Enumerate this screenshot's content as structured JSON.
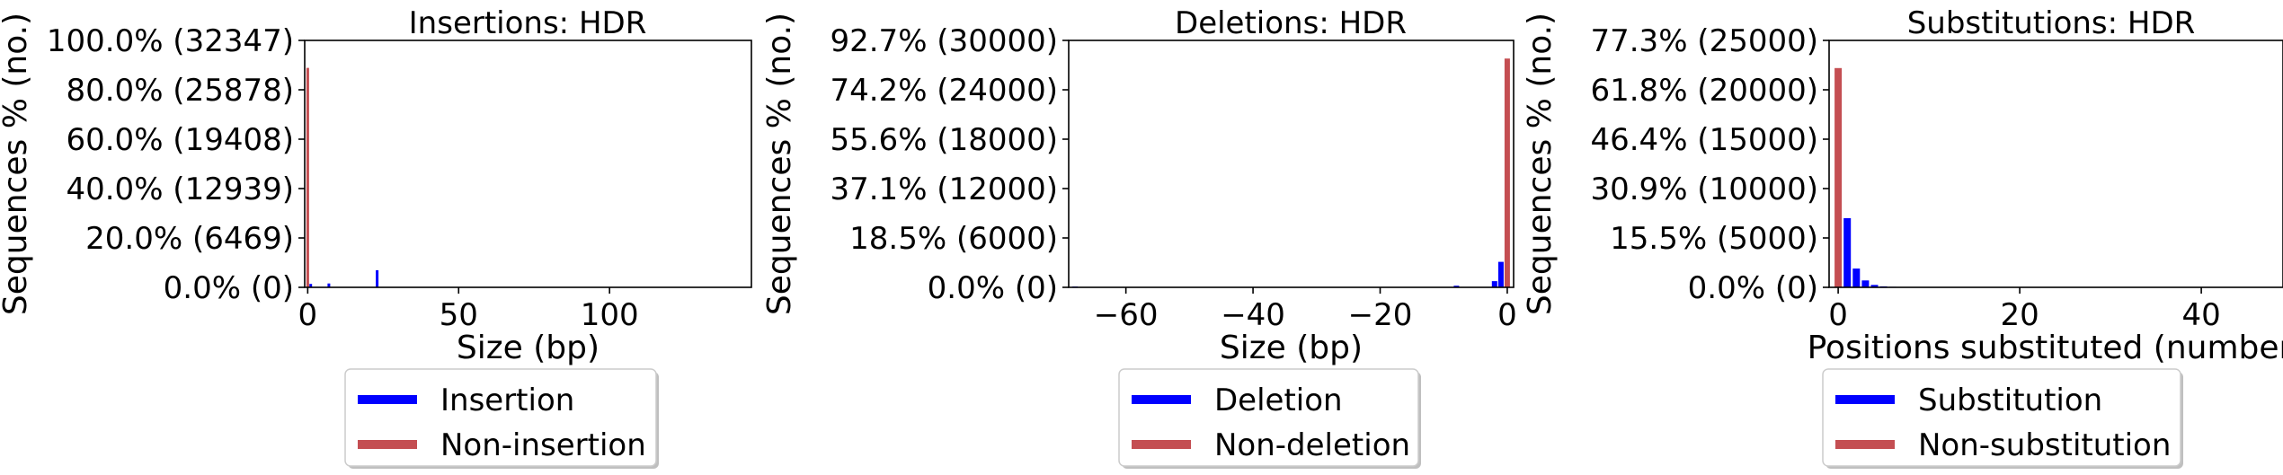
{
  "chart_data": [
    {
      "type": "bar",
      "title": "Insertions: HDR",
      "xlabel": "Size (bp)",
      "ylabel": "Sequences % (no.)",
      "xlim": [
        -1,
        147
      ],
      "ylim": [
        0,
        32347
      ],
      "xticks": [
        0,
        50,
        100
      ],
      "xtick_labels": [
        "0",
        "50",
        "100"
      ],
      "yticks": [
        0,
        6469,
        12939,
        19408,
        25878,
        32347
      ],
      "ytick_labels": [
        "0.0% (0)",
        "20.0% (6469)",
        "40.0% (12939)",
        "60.0% (19408)",
        "80.0% (25878)",
        "100.0% (32347)"
      ],
      "grid": false,
      "legend": {
        "placement": "below",
        "entries": [
          "Insertion",
          "Non-insertion"
        ]
      },
      "series": [
        {
          "name": "Insertion",
          "color": "#0000ff",
          "x": [
            1,
            7,
            23
          ],
          "values": [
            450,
            500,
            2250
          ]
        },
        {
          "name": "Non-insertion",
          "color": "#c44e52",
          "x": [
            0
          ],
          "values": [
            28750
          ]
        }
      ]
    },
    {
      "type": "bar",
      "title": "Deletions: HDR",
      "xlabel": "Size (bp)",
      "ylabel": "Sequences % (no.)",
      "xlim": [
        -69,
        1
      ],
      "ylim": [
        0,
        30000
      ],
      "xticks": [
        -60,
        -40,
        -20,
        0
      ],
      "xtick_labels": [
        "−60",
        "−40",
        "−20",
        "0"
      ],
      "yticks": [
        0,
        6000,
        12000,
        18000,
        24000,
        30000
      ],
      "ytick_labels": [
        "0.0% (0)",
        "18.5% (6000)",
        "37.1% (12000)",
        "55.6% (18000)",
        "74.2% (24000)",
        "92.7% (30000)"
      ],
      "grid": false,
      "legend": {
        "placement": "below",
        "entries": [
          "Deletion",
          "Non-deletion"
        ]
      },
      "series": [
        {
          "name": "Deletion",
          "color": "#0000ff",
          "x": [
            -68,
            -8,
            -2,
            -1
          ],
          "values": [
            100,
            200,
            750,
            3100
          ]
        },
        {
          "name": "Non-deletion",
          "color": "#c44e52",
          "x": [
            0
          ],
          "values": [
            27800
          ]
        }
      ]
    },
    {
      "type": "bar",
      "title": "Substitutions: HDR",
      "xlabel": "Positions substituted (number)",
      "ylabel": "Sequences % (no.)",
      "xlim": [
        -1,
        49
      ],
      "ylim": [
        0,
        25000
      ],
      "xticks": [
        0,
        20,
        40
      ],
      "xtick_labels": [
        "0",
        "20",
        "40"
      ],
      "yticks": [
        0,
        5000,
        10000,
        15000,
        20000,
        25000
      ],
      "ytick_labels": [
        "0.0% (0)",
        "15.5% (5000)",
        "30.9% (10000)",
        "46.4% (15000)",
        "61.8% (20000)",
        "77.3% (25000)"
      ],
      "grid": false,
      "legend": {
        "placement": "below",
        "entries": [
          "Substitution",
          "Non-substitution"
        ]
      },
      "series": [
        {
          "name": "Substitution",
          "color": "#0000ff",
          "x": [
            1,
            2,
            3,
            4,
            5,
            6
          ],
          "values": [
            7000,
            1900,
            700,
            250,
            100,
            50
          ]
        },
        {
          "name": "Non-substitution",
          "color": "#c44e52",
          "x": [
            0
          ],
          "values": [
            22200
          ]
        }
      ]
    }
  ]
}
